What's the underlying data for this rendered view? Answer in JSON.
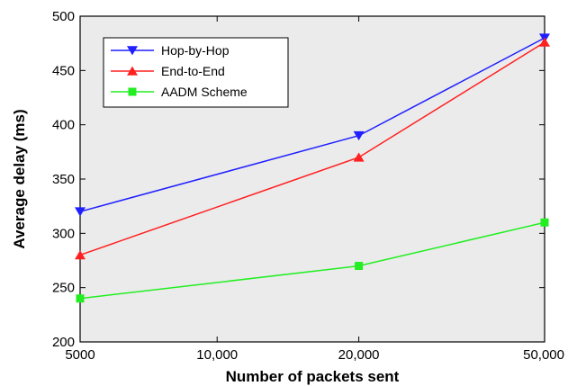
{
  "chart_data": {
    "type": "line",
    "xlabel": "Number of packets sent",
    "ylabel": "Average delay (ms)",
    "x_ticks": [
      "5000",
      "10,000",
      "20,000",
      "50,000"
    ],
    "x": [
      "5000",
      "20,000",
      "50,000"
    ],
    "ylim": [
      200,
      500
    ],
    "y_ticks": [
      200,
      250,
      300,
      350,
      400,
      450,
      500
    ],
    "grid": false,
    "legend_position": "top-left",
    "plot_background": "#ebebeb",
    "series": [
      {
        "name": "Hop-by-Hop",
        "values": [
          320,
          390,
          480
        ],
        "color": "#1f1fff",
        "marker": "triangle-down"
      },
      {
        "name": "End-to-End",
        "values": [
          280,
          370,
          476
        ],
        "color": "#ff2020",
        "marker": "triangle-up"
      },
      {
        "name": "AADM Scheme",
        "values": [
          240,
          270,
          310
        ],
        "color": "#22ee22",
        "marker": "square"
      }
    ]
  }
}
